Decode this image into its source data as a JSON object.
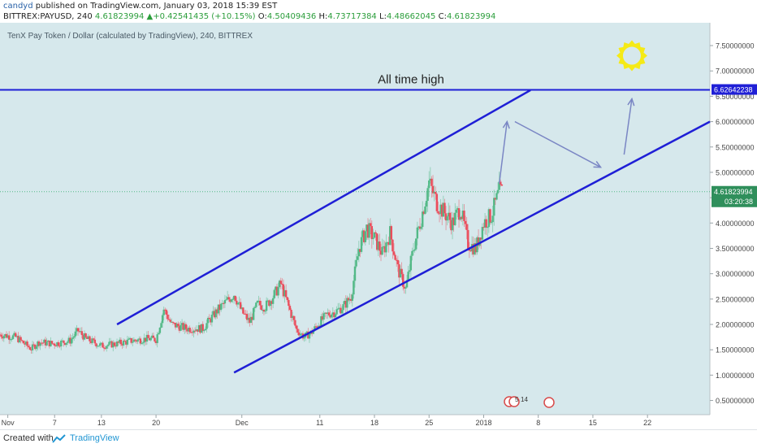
{
  "header": {
    "author": "candyd",
    "published": "published on TradingView.com, January 03, 2018 15:39 EST",
    "symbol": "BITTREX:PAYUSD, 240",
    "last": "4.61823994",
    "arrow": "▲",
    "change": "+0.42541435 (+10.15%)",
    "o_label": "O:",
    "o_value": "4.50409436",
    "h_label": "H:",
    "h_value": "4.73717384",
    "l_label": "L:",
    "l_value": "4.48662045",
    "c_label": "C:",
    "c_value": "4.61823994"
  },
  "footer": {
    "created": "Created with",
    "brand": "TradingView"
  },
  "colors": {
    "background": "#d6e8ec",
    "up": "#53b987",
    "down": "#eb4d5c",
    "channel": "#1f1fd6",
    "arrows": "#7a86c4",
    "sun": "#f5ea16",
    "price_tag": "#2f8f5b",
    "high_tag": "#1f1fd6"
  },
  "chart_data": {
    "type": "candlestick",
    "title": "TenX Pay Token / Dollar (calculated by TradingView), 240, BITTREX",
    "xlabel": "",
    "ylabel": "",
    "x_tick_labels": [
      "Nov",
      "7",
      "13",
      "20",
      "Dec",
      "11",
      "18",
      "25",
      "2018",
      "8",
      "15",
      "22"
    ],
    "x_tick_dates": [
      "2017-11-01",
      "2017-11-07",
      "2017-11-13",
      "2017-11-20",
      "2017-12-01",
      "2017-12-11",
      "2017-12-18",
      "2017-12-25",
      "2018-01-01",
      "2018-01-08",
      "2018-01-15",
      "2018-01-22"
    ],
    "y_tick_labels": [
      "0.50000000",
      "1.00000000",
      "1.50000000",
      "2.00000000",
      "2.50000000",
      "3.00000000",
      "3.50000000",
      "4.00000000",
      "4.50000000",
      "5.00000000",
      "5.50000000",
      "6.00000000",
      "6.50000000",
      "7.00000000",
      "7.50000000"
    ],
    "y_ticks": [
      0.5,
      1.0,
      1.5,
      2.0,
      2.5,
      3.0,
      3.5,
      4.0,
      4.5,
      5.0,
      5.5,
      6.0,
      6.5,
      7.0,
      7.5
    ],
    "ylim": [
      0.22,
      7.95
    ],
    "xlim": [
      "2017-10-31",
      "2018-01-30"
    ],
    "grid": false,
    "last_price": 4.61823994,
    "countdown": "03:20:38",
    "all_time_high": {
      "value": 6.62642238,
      "label": "6.62642238",
      "annotation": "All time high"
    },
    "closes": [
      {
        "d": "2017-10-31",
        "c": 1.8
      },
      {
        "d": "2017-11-02",
        "c": 1.75
      },
      {
        "d": "2017-11-04",
        "c": 1.52
      },
      {
        "d": "2017-11-05",
        "c": 1.65
      },
      {
        "d": "2017-11-07",
        "c": 1.62
      },
      {
        "d": "2017-11-09",
        "c": 1.68
      },
      {
        "d": "2017-11-10",
        "c": 1.88
      },
      {
        "d": "2017-11-11",
        "c": 1.72
      },
      {
        "d": "2017-11-13",
        "c": 1.58
      },
      {
        "d": "2017-11-15",
        "c": 1.62
      },
      {
        "d": "2017-11-17",
        "c": 1.68
      },
      {
        "d": "2017-11-19",
        "c": 1.72
      },
      {
        "d": "2017-11-20",
        "c": 1.7
      },
      {
        "d": "2017-11-21",
        "c": 2.3
      },
      {
        "d": "2017-11-22",
        "c": 2.0
      },
      {
        "d": "2017-11-24",
        "c": 1.92
      },
      {
        "d": "2017-11-26",
        "c": 1.92
      },
      {
        "d": "2017-11-28",
        "c": 2.3
      },
      {
        "d": "2017-11-30",
        "c": 2.6
      },
      {
        "d": "2017-12-01",
        "c": 2.25
      },
      {
        "d": "2017-12-02",
        "c": 2.05
      },
      {
        "d": "2017-12-03",
        "c": 2.4
      },
      {
        "d": "2017-12-04",
        "c": 2.35
      },
      {
        "d": "2017-12-05",
        "c": 2.55
      },
      {
        "d": "2017-12-06",
        "c": 2.8
      },
      {
        "d": "2017-12-07",
        "c": 2.35
      },
      {
        "d": "2017-12-08",
        "c": 1.9
      },
      {
        "d": "2017-12-09",
        "c": 1.75
      },
      {
        "d": "2017-12-10",
        "c": 1.85
      },
      {
        "d": "2017-12-11",
        "c": 2.05
      },
      {
        "d": "2017-12-12",
        "c": 2.2
      },
      {
        "d": "2017-12-13",
        "c": 2.25
      },
      {
        "d": "2017-12-14",
        "c": 2.35
      },
      {
        "d": "2017-12-15",
        "c": 2.55
      },
      {
        "d": "2017-12-16",
        "c": 3.5
      },
      {
        "d": "2017-12-17",
        "c": 3.9
      },
      {
        "d": "2017-12-18",
        "c": 3.7
      },
      {
        "d": "2017-12-19",
        "c": 3.4
      },
      {
        "d": "2017-12-20",
        "c": 3.8
      },
      {
        "d": "2017-12-21",
        "c": 3.1
      },
      {
        "d": "2017-12-22",
        "c": 2.7
      },
      {
        "d": "2017-12-23",
        "c": 3.5
      },
      {
        "d": "2017-12-24",
        "c": 4.1
      },
      {
        "d": "2017-12-25",
        "c": 4.8
      },
      {
        "d": "2017-12-26",
        "c": 4.4
      },
      {
        "d": "2017-12-27",
        "c": 4.2
      },
      {
        "d": "2017-12-28",
        "c": 4.0
      },
      {
        "d": "2017-12-29",
        "c": 4.3
      },
      {
        "d": "2017-12-30",
        "c": 3.6
      },
      {
        "d": "2017-12-31",
        "c": 3.5
      },
      {
        "d": "2018-01-01",
        "c": 4.0
      },
      {
        "d": "2018-01-02",
        "c": 4.15
      },
      {
        "d": "2018-01-03",
        "c": 4.62
      }
    ],
    "drawings": {
      "upper_channel": [
        {
          "d": "2017-11-15",
          "p": 2.0
        },
        {
          "d": "2018-01-07",
          "p": 6.62
        }
      ],
      "lower_channel": [
        {
          "d": "2017-11-30",
          "p": 1.05
        },
        {
          "d": "2018-01-30",
          "p": 6.0
        }
      ],
      "arrows": [
        [
          {
            "d": "2018-01-03",
            "p": 4.78
          },
          {
            "d": "2018-01-04",
            "p": 6.0
          }
        ],
        [
          {
            "d": "2018-01-05",
            "p": 6.0
          },
          {
            "d": "2018-01-16",
            "p": 5.1
          }
        ],
        [
          {
            "d": "2018-01-19",
            "p": 5.35
          },
          {
            "d": "2018-01-20",
            "p": 6.45
          }
        ]
      ],
      "sun": {
        "d": "2018-01-20",
        "p": 7.3
      }
    }
  }
}
